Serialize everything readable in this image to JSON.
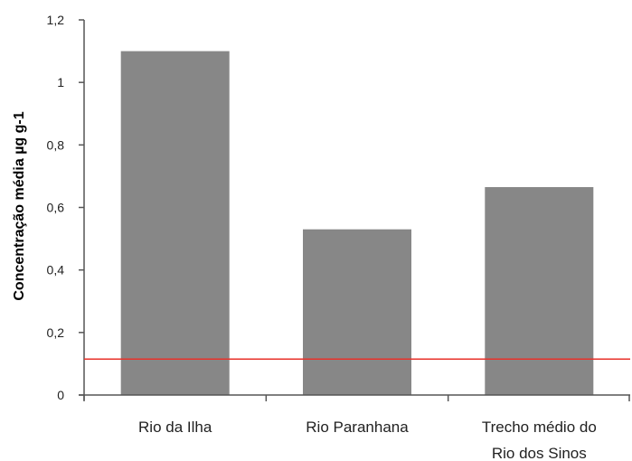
{
  "chart_data": {
    "type": "bar",
    "title": "",
    "xlabel": "",
    "ylabel": "Concentração média µg g-1",
    "categories": [
      [
        "Rio da Ilha"
      ],
      [
        "Rio Paranhana"
      ],
      [
        "Trecho médio do",
        "Rio dos Sinos"
      ]
    ],
    "values": [
      1.1,
      0.53,
      0.665
    ],
    "ylim": [
      0,
      1.2
    ],
    "yticks": [
      "0",
      "0,2",
      "0,4",
      "0,6",
      "0,8",
      "1",
      "1,2"
    ],
    "ytick_values": [
      0,
      0.2,
      0.4,
      0.6,
      0.8,
      1.0,
      1.2
    ],
    "reference_line": {
      "value": 0.115,
      "color": "#e8312a"
    },
    "bar_color": "#878787",
    "axis_color": "#555555",
    "grid": false,
    "legend": "none"
  }
}
